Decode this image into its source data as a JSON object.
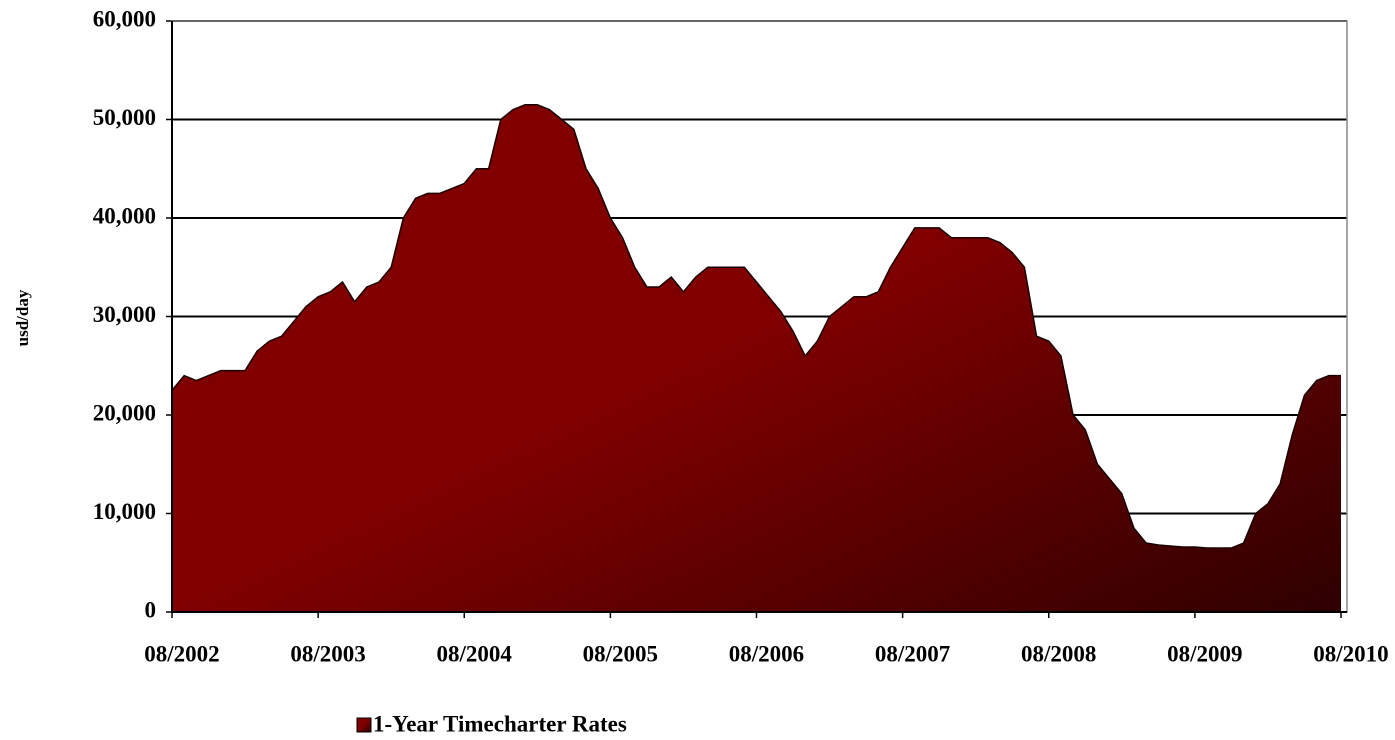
{
  "chart_data": {
    "type": "area",
    "ylabel": "usd/day",
    "categories": [
      "08/2002",
      null,
      null,
      null,
      null,
      null,
      null,
      null,
      null,
      null,
      null,
      null,
      "08/2003",
      null,
      null,
      null,
      null,
      null,
      null,
      null,
      null,
      null,
      null,
      null,
      "08/2004",
      null,
      null,
      null,
      null,
      null,
      null,
      null,
      null,
      null,
      null,
      null,
      "08/2005",
      null,
      null,
      null,
      null,
      null,
      null,
      null,
      null,
      null,
      null,
      null,
      "08/2006",
      null,
      null,
      null,
      null,
      null,
      null,
      null,
      null,
      null,
      null,
      null,
      "08/2007",
      null,
      null,
      null,
      null,
      null,
      null,
      null,
      null,
      null,
      null,
      null,
      "08/2008",
      null,
      null,
      null,
      null,
      null,
      null,
      null,
      null,
      null,
      null,
      null,
      "08/2009",
      null,
      null,
      null,
      null,
      null,
      null,
      null,
      null,
      null,
      null,
      null,
      "08/2010"
    ],
    "series": [
      {
        "name": "1-Year Timecharter Rates",
        "color": "#800000",
        "values": [
          22500,
          24000,
          23500,
          24000,
          24500,
          24500,
          24500,
          26500,
          27500,
          28000,
          29500,
          31000,
          32000,
          32500,
          33500,
          31500,
          33000,
          33500,
          35000,
          40000,
          42000,
          42500,
          42500,
          43000,
          43500,
          45000,
          45000,
          50000,
          51000,
          51500,
          51500,
          51000,
          50000,
          49000,
          45000,
          43000,
          40000,
          38000,
          35000,
          33000,
          33000,
          34000,
          32500,
          34000,
          35000,
          35000,
          35000,
          35000,
          33500,
          32000,
          30500,
          28500,
          26000,
          27500,
          30000,
          31000,
          32000,
          32000,
          32500,
          35000,
          37000,
          39000,
          39000,
          39000,
          38000,
          38000,
          38000,
          38000,
          37500,
          36500,
          35000,
          28000,
          27500,
          26000,
          20000,
          18500,
          15000,
          13500,
          12000,
          8500,
          7000,
          6800,
          6700,
          6600,
          6600,
          6500,
          6500,
          6500,
          7000,
          10000,
          11000,
          13000,
          18000,
          22000,
          23500,
          24000,
          24000
        ]
      }
    ],
    "ylim": [
      0,
      60000
    ],
    "yticks": [
      {
        "value": 0,
        "label": "0"
      },
      {
        "value": 10000,
        "label": "10,000"
      },
      {
        "value": 20000,
        "label": "20,000"
      },
      {
        "value": 30000,
        "label": "30,000"
      },
      {
        "value": 40000,
        "label": "40,000"
      },
      {
        "value": 50000,
        "label": "50,000"
      },
      {
        "value": 60000,
        "label": "60,000"
      }
    ],
    "grid": true,
    "legend": "bottom"
  }
}
